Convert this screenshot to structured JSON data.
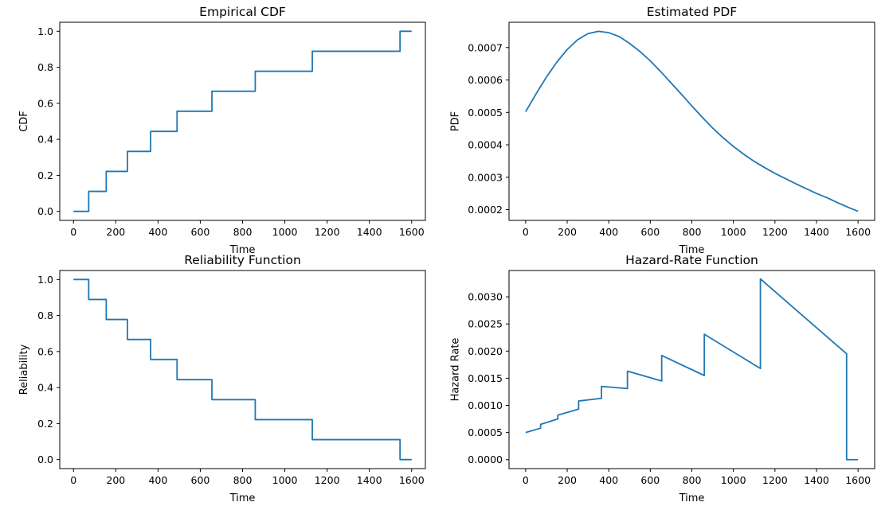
{
  "chart_data": [
    {
      "type": "line",
      "step": true,
      "title": "Empirical CDF",
      "xlabel": "Time",
      "ylabel": "CDF",
      "xlim": [
        -65,
        1665
      ],
      "ylim": [
        -0.05,
        1.05
      ],
      "xticks": [
        0,
        200,
        400,
        600,
        800,
        1000,
        1200,
        1400,
        1600
      ],
      "xtick_labels": [
        "0",
        "200",
        "400",
        "600",
        "800",
        "1000",
        "1200",
        "1400",
        "1600"
      ],
      "yticks": [
        0.0,
        0.2,
        0.4,
        0.6,
        0.8,
        1.0
      ],
      "ytick_labels": [
        "0.0",
        "0.2",
        "0.4",
        "0.6",
        "0.8",
        "1.0"
      ],
      "grid": false,
      "series": [
        {
          "x": [
            0,
            72,
            72,
            155,
            155,
            255,
            255,
            365,
            365,
            490,
            490,
            655,
            655,
            860,
            860,
            1130,
            1130,
            1545,
            1545,
            1600
          ],
          "y": [
            0,
            0,
            0.111,
            0.111,
            0.222,
            0.222,
            0.333,
            0.333,
            0.444,
            0.444,
            0.556,
            0.556,
            0.667,
            0.667,
            0.778,
            0.778,
            0.889,
            0.889,
            1.0,
            1.0
          ],
          "color": "#1f77b4"
        }
      ]
    },
    {
      "type": "line",
      "title": "Estimated PDF",
      "xlabel": "Time",
      "ylabel": "PDF",
      "xlim": [
        -80,
        1680
      ],
      "ylim": [
        0.000167,
        0.000778
      ],
      "xticks": [
        0,
        200,
        400,
        600,
        800,
        1000,
        1200,
        1400,
        1600
      ],
      "xtick_labels": [
        "0",
        "200",
        "400",
        "600",
        "800",
        "1000",
        "1200",
        "1400",
        "1600"
      ],
      "yticks": [
        0.0002,
        0.0003,
        0.0004,
        0.0005,
        0.0006,
        0.0007
      ],
      "ytick_labels": [
        "0.0002",
        "0.0003",
        "0.0004",
        "0.0005",
        "0.0006",
        "0.0007"
      ],
      "grid": false,
      "series": [
        {
          "x": [
            0,
            50,
            100,
            150,
            200,
            250,
            300,
            350,
            400,
            450,
            500,
            550,
            600,
            650,
            700,
            750,
            800,
            850,
            900,
            950,
            1000,
            1050,
            1100,
            1150,
            1200,
            1250,
            1300,
            1350,
            1400,
            1450,
            1500,
            1550,
            1600
          ],
          "y": [
            0.000502,
            0.000557,
            0.000609,
            0.000655,
            0.000694,
            0.000724,
            0.000743,
            0.00075,
            0.000746,
            0.000734,
            0.000713,
            0.000688,
            0.000659,
            0.000626,
            0.000591,
            0.000556,
            0.00052,
            0.000485,
            0.000452,
            0.000422,
            0.000395,
            0.000371,
            0.000349,
            0.00033,
            0.000312,
            0.000296,
            0.00028,
            0.000265,
            0.00025,
            0.000237,
            0.000222,
            0.000208,
            0.000195
          ],
          "color": "#1f77b4"
        }
      ]
    },
    {
      "type": "line",
      "step": true,
      "title": "Reliability Function",
      "xlabel": "Time",
      "ylabel": "Reliability",
      "xlim": [
        -65,
        1665
      ],
      "ylim": [
        -0.05,
        1.05
      ],
      "xticks": [
        0,
        200,
        400,
        600,
        800,
        1000,
        1200,
        1400,
        1600
      ],
      "xtick_labels": [
        "0",
        "200",
        "400",
        "600",
        "800",
        "1000",
        "1200",
        "1400",
        "1600"
      ],
      "yticks": [
        0.0,
        0.2,
        0.4,
        0.6,
        0.8,
        1.0
      ],
      "ytick_labels": [
        "0.0",
        "0.2",
        "0.4",
        "0.6",
        "0.8",
        "1.0"
      ],
      "grid": false,
      "series": [
        {
          "x": [
            0,
            72,
            72,
            155,
            155,
            255,
            255,
            365,
            365,
            490,
            490,
            655,
            655,
            860,
            860,
            1130,
            1130,
            1545,
            1545,
            1600
          ],
          "y": [
            1.0,
            1.0,
            0.889,
            0.889,
            0.778,
            0.778,
            0.667,
            0.667,
            0.556,
            0.556,
            0.444,
            0.444,
            0.333,
            0.333,
            0.222,
            0.222,
            0.111,
            0.111,
            0,
            0
          ],
          "color": "#1f77b4"
        }
      ]
    },
    {
      "type": "line",
      "title": "Hazard-Rate Function",
      "xlabel": "Time",
      "ylabel": "Hazard Rate",
      "xlim": [
        -80,
        1680
      ],
      "ylim": [
        -0.000165,
        0.003485
      ],
      "xticks": [
        0,
        200,
        400,
        600,
        800,
        1000,
        1200,
        1400,
        1600
      ],
      "xtick_labels": [
        "0",
        "200",
        "400",
        "600",
        "800",
        "1000",
        "1200",
        "1400",
        "1600"
      ],
      "yticks": [
        0.0,
        0.0005,
        0.001,
        0.0015,
        0.002,
        0.0025,
        0.003
      ],
      "ytick_labels": [
        "0.0000",
        "0.0005",
        "0.0010",
        "0.0015",
        "0.0020",
        "0.0025",
        "0.0030"
      ],
      "grid": false,
      "series": [
        {
          "x": [
            0,
            72,
            72,
            155,
            155,
            255,
            255,
            365,
            365,
            490,
            490,
            655,
            655,
            860,
            860,
            1130,
            1130,
            1545,
            1545,
            1600
          ],
          "y": [
            0.0005,
            0.00058,
            0.00065,
            0.00075,
            0.00082,
            0.00093,
            0.00108,
            0.00113,
            0.00135,
            0.00131,
            0.00163,
            0.00145,
            0.00192,
            0.00155,
            0.00231,
            0.00168,
            0.00333,
            0.00195,
            0.0,
            0.0
          ],
          "color": "#1f77b4"
        }
      ]
    }
  ]
}
